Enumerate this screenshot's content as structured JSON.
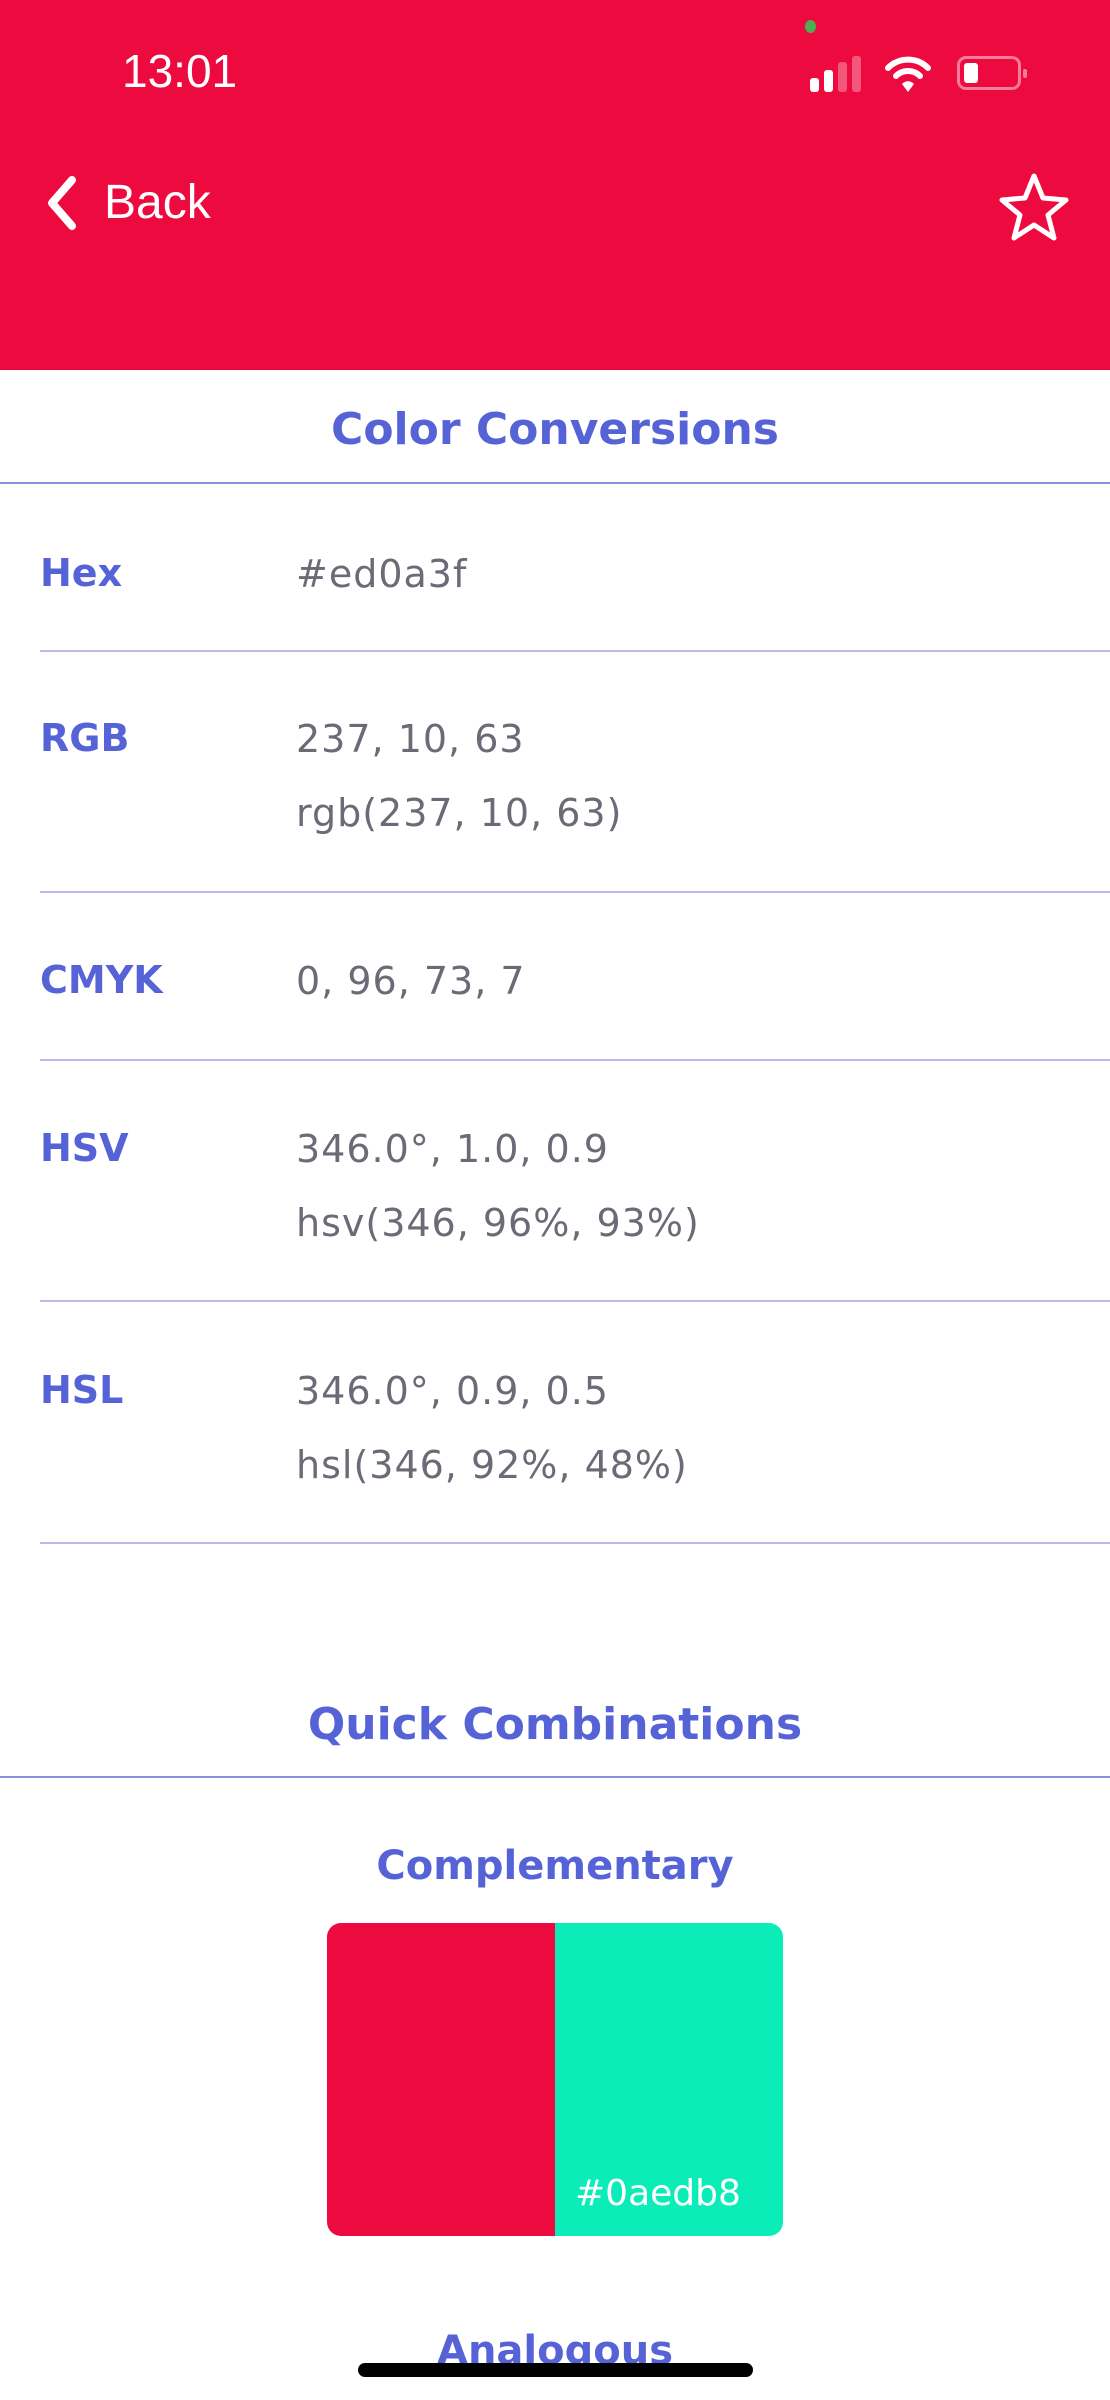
{
  "status_bar": {
    "time": "13:01"
  },
  "nav": {
    "back_label": "Back",
    "favorite_icon": "star-outline-icon"
  },
  "colors": {
    "header": "#ed0a3f",
    "accent": "#5563d6",
    "complement": "#0aedb8"
  },
  "conversions": {
    "title": "Color Conversions",
    "rows": [
      {
        "label": "Hex",
        "values": [
          "#ed0a3f"
        ]
      },
      {
        "label": "RGB",
        "values": [
          "237, 10, 63",
          "rgb(237, 10, 63)"
        ]
      },
      {
        "label": "CMYK",
        "values": [
          "0, 96, 73, 7"
        ]
      },
      {
        "label": "HSV",
        "values": [
          "346.0°, 1.0, 0.9",
          "hsv(346, 96%, 93%)"
        ]
      },
      {
        "label": "HSL",
        "values": [
          "346.0°, 0.9, 0.5",
          "hsl(346, 92%, 48%)"
        ]
      }
    ]
  },
  "combinations": {
    "title": "Quick Combinations",
    "complementary": {
      "title": "Complementary",
      "swatch_label": "#0aedb8"
    },
    "analogous": {
      "title": "Analogous"
    }
  }
}
